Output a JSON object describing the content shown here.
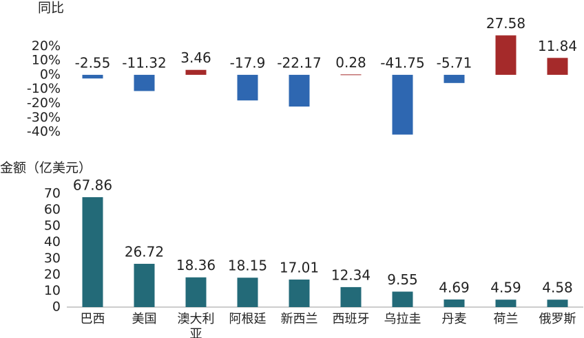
{
  "chart_data": [
    {
      "type": "bar",
      "y_label": "同比",
      "values": [
        -2.55,
        -11.32,
        3.46,
        -17.9,
        -22.17,
        0.28,
        -41.75,
        -5.71,
        27.58,
        11.84
      ],
      "positive_color": "#a52a2a",
      "negative_color": "#2e67b1",
      "ylim": [
        -42,
        28
      ],
      "yticks": [
        {
          "value": 20,
          "label": "20%"
        },
        {
          "value": 10,
          "label": "10%"
        },
        {
          "value": 0,
          "label": "0%"
        },
        {
          "value": -10,
          "label": "-10%"
        },
        {
          "value": -20,
          "label": "-20%"
        },
        {
          "value": -30,
          "label": "-30%"
        },
        {
          "value": -40,
          "label": "-40%"
        }
      ],
      "grid": false
    },
    {
      "type": "bar",
      "y_label": "金额（亿美元）",
      "categories": [
        "巴西",
        "美国",
        "澳大利亚",
        "阿根廷",
        "新西兰",
        "西班牙",
        "乌拉圭",
        "丹麦",
        "荷兰",
        "俄罗斯"
      ],
      "values": [
        67.86,
        26.72,
        18.36,
        18.15,
        17.01,
        12.34,
        9.55,
        4.69,
        4.59,
        4.58
      ],
      "color": "#236a78",
      "ylim": [
        0,
        75
      ],
      "yticks": [
        0,
        10,
        20,
        30,
        40,
        50,
        60,
        70
      ],
      "grid": false
    }
  ]
}
